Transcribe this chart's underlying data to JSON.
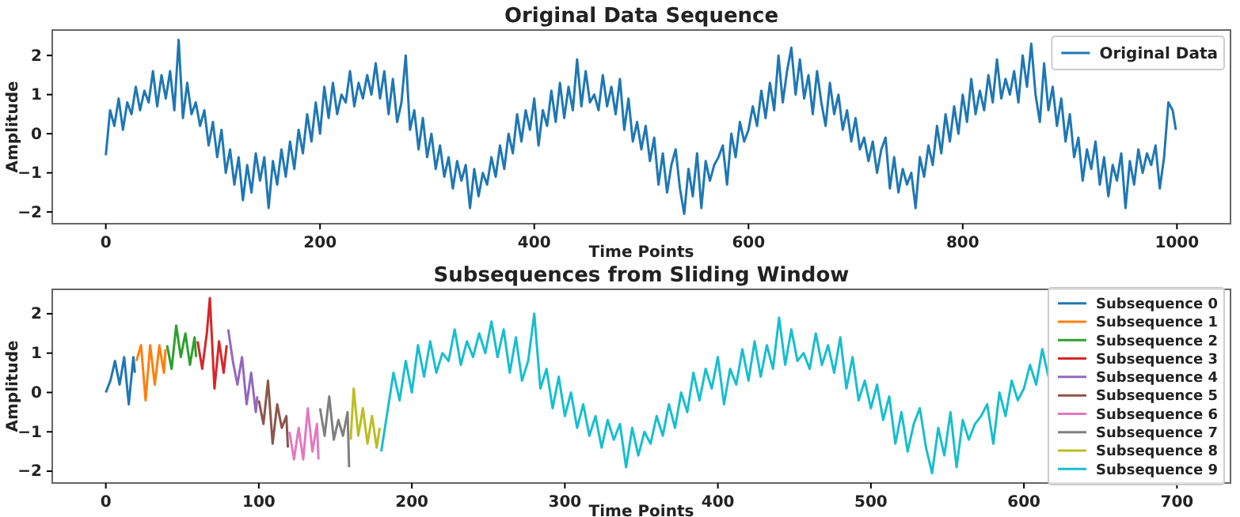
{
  "chart_data": [
    {
      "type": "line",
      "title": "Original Data Sequence",
      "xlabel": "Time Points",
      "ylabel": "Amplitude",
      "xlim": [
        -50,
        1050
      ],
      "ylim": [
        -2.3,
        2.65
      ],
      "xticks": [
        0,
        200,
        400,
        600,
        800,
        1000
      ],
      "yticks": [
        -2,
        -1,
        0,
        1,
        2
      ],
      "legend": "top right",
      "series": [
        {
          "name": "Original Data",
          "color": "#1f77b4",
          "x": [
            0,
            4,
            8,
            12,
            16,
            20,
            24,
            28,
            32,
            36,
            40,
            44,
            48,
            52,
            56,
            60,
            64,
            68,
            72,
            76,
            80,
            84,
            88,
            92,
            96,
            100,
            104,
            108,
            112,
            116,
            120,
            124,
            128,
            132,
            136,
            140,
            144,
            148,
            152,
            156,
            160,
            164,
            168,
            172,
            176,
            180,
            184,
            188,
            192,
            196,
            200,
            204,
            208,
            212,
            216,
            220,
            224,
            228,
            232,
            236,
            240,
            244,
            248,
            252,
            256,
            260,
            264,
            268,
            272,
            276,
            280,
            284,
            288,
            292,
            296,
            300,
            304,
            308,
            312,
            316,
            320,
            324,
            328,
            332,
            336,
            340,
            344,
            348,
            352,
            356,
            360,
            364,
            368,
            372,
            376,
            380,
            384,
            388,
            392,
            396,
            400,
            404,
            408,
            412,
            416,
            420,
            424,
            428,
            432,
            436,
            440,
            444,
            448,
            452,
            456,
            460,
            464,
            468,
            472,
            476,
            480,
            484,
            488,
            492,
            496,
            500,
            504,
            508,
            512,
            516,
            520,
            524,
            528,
            532,
            536,
            540,
            544,
            548,
            552,
            556,
            560,
            564,
            568,
            572,
            576,
            580,
            584,
            588,
            592,
            596,
            600,
            604,
            608,
            612,
            616,
            620,
            624,
            628,
            632,
            636,
            640,
            644,
            648,
            652,
            656,
            660,
            664,
            668,
            672,
            676,
            680,
            684,
            688,
            692,
            696,
            700,
            704,
            708,
            712,
            716,
            720,
            724,
            728,
            732,
            736,
            740,
            744,
            748,
            752,
            756,
            760,
            764,
            768,
            772,
            776,
            780,
            784,
            788,
            792,
            796,
            800,
            804,
            808,
            812,
            816,
            820,
            824,
            828,
            832,
            836,
            840,
            844,
            848,
            852,
            856,
            860,
            864,
            868,
            872,
            876,
            880,
            884,
            888,
            892,
            896,
            900,
            904,
            908,
            912,
            916,
            920,
            924,
            928,
            932,
            936,
            940,
            944,
            948,
            952,
            956,
            960,
            964,
            968,
            972,
            976,
            980,
            984,
            988,
            992,
            996,
            999
          ],
          "values": [
            -0.55,
            0.6,
            0.2,
            0.9,
            0.1,
            0.8,
            0.5,
            1.2,
            0.6,
            1.1,
            0.8,
            1.6,
            0.7,
            1.5,
            0.9,
            1.6,
            0.6,
            2.4,
            0.4,
            1.3,
            0.5,
            0.8,
            0.2,
            0.6,
            -0.3,
            0.3,
            -0.6,
            0.1,
            -1.0,
            -0.4,
            -1.3,
            -0.6,
            -1.7,
            -0.8,
            -1.5,
            -0.5,
            -1.2,
            -0.6,
            -1.9,
            -0.7,
            -1.3,
            -0.4,
            -1.1,
            -0.2,
            -0.9,
            0.1,
            -0.5,
            0.5,
            -0.2,
            0.8,
            0.0,
            1.2,
            0.4,
            1.3,
            0.5,
            1.0,
            0.8,
            1.6,
            0.7,
            1.3,
            0.9,
            1.5,
            1.0,
            1.8,
            0.9,
            1.6,
            0.5,
            1.4,
            0.3,
            0.8,
            2.0,
            0.1,
            0.6,
            -0.4,
            0.4,
            -0.6,
            0.0,
            -0.9,
            -0.3,
            -1.1,
            -0.6,
            -1.4,
            -0.7,
            -1.2,
            -0.8,
            -1.9,
            -0.9,
            -1.6,
            -1.0,
            -1.3,
            -0.6,
            -1.1,
            -0.3,
            -0.9,
            0.0,
            -0.5,
            0.5,
            -0.2,
            0.6,
            0.1,
            0.9,
            -0.3,
            0.6,
            0.2,
            1.1,
            0.3,
            1.3,
            0.4,
            1.2,
            0.6,
            1.9,
            0.7,
            1.6,
            0.8,
            1.0,
            0.6,
            1.5,
            0.7,
            1.2,
            0.5,
            1.4,
            0.1,
            0.9,
            -0.2,
            0.3,
            -0.4,
            0.2,
            -0.7,
            -0.1,
            -1.3,
            -0.5,
            -1.5,
            -0.8,
            -0.4,
            -1.4,
            -2.05,
            -0.9,
            -1.6,
            -0.5,
            -1.9,
            -0.7,
            -1.2,
            -0.8,
            -0.6,
            -0.3,
            -1.3,
            0.0,
            -0.6,
            0.3,
            -0.2,
            0.1,
            0.7,
            0.2,
            1.1,
            0.4,
            1.3,
            0.6,
            2.0,
            0.8,
            1.6,
            2.2,
            1.0,
            1.9,
            0.9,
            1.5,
            0.5,
            1.6,
            0.8,
            0.2,
            1.3,
            0.5,
            1.0,
            0.1,
            0.6,
            -0.2,
            0.4,
            -0.4,
            -0.1,
            -0.7,
            -0.2,
            -1.0,
            -0.4,
            -0.1,
            -1.4,
            -0.6,
            -1.5,
            -0.9,
            -1.3,
            -1.0,
            -1.9,
            -0.6,
            -1.1,
            -0.3,
            -0.8,
            0.2,
            -0.5,
            0.5,
            -0.2,
            0.7,
            0.0,
            1.0,
            0.3,
            1.4,
            0.5,
            1.1,
            0.6,
            1.5,
            0.8,
            1.9,
            0.9,
            1.4,
            1.0,
            1.6,
            0.8,
            2.0,
            1.2,
            2.3,
            1.0,
            0.3,
            1.8,
            0.6,
            1.2,
            0.2,
            0.9,
            -0.2,
            0.5,
            -0.6,
            -0.1,
            -1.2,
            -0.4,
            -0.9,
            -0.2,
            -1.3,
            -0.6,
            -1.6,
            -0.8,
            -1.2,
            -0.5,
            -1.9,
            -0.7,
            -1.3,
            -0.4,
            -1.0,
            -0.5,
            -0.8,
            -0.3,
            -1.4,
            -0.6,
            0.8,
            0.6,
            0.1
          ]
        }
      ]
    },
    {
      "type": "line",
      "title": "Subsequences from Sliding Window",
      "xlabel": "Time Points",
      "ylabel": "Amplitude",
      "xlim": [
        -35,
        735
      ],
      "ylim": [
        -2.3,
        2.62
      ],
      "xticks": [
        0,
        100,
        200,
        300,
        400,
        500,
        600,
        700
      ],
      "yticks": [
        -2,
        -1,
        0,
        1,
        2
      ],
      "legend": "right",
      "series": [
        {
          "name": "Subsequence 0",
          "color": "#1f77b4",
          "x": [
            0,
            3,
            6,
            9,
            12,
            15,
            18,
            19
          ],
          "values": [
            0.0,
            0.3,
            0.8,
            0.2,
            0.9,
            -0.3,
            0.9,
            0.5
          ]
        },
        {
          "name": "Subsequence 1",
          "color": "#ff7f0e",
          "x": [
            20,
            23,
            26,
            29,
            32,
            35,
            38,
            39
          ],
          "values": [
            0.8,
            1.2,
            -0.2,
            1.2,
            0.2,
            1.2,
            0.5,
            1.1
          ]
        },
        {
          "name": "Subsequence 2",
          "color": "#2ca02c",
          "x": [
            40,
            43,
            46,
            49,
            52,
            55,
            58,
            59
          ],
          "values": [
            1.2,
            0.6,
            1.7,
            0.9,
            1.5,
            0.7,
            1.4,
            0.9
          ]
        },
        {
          "name": "Subsequence 3",
          "color": "#d62728",
          "x": [
            60,
            63,
            66,
            68,
            71,
            74,
            77,
            79
          ],
          "values": [
            1.3,
            0.6,
            1.5,
            2.4,
            0.1,
            1.3,
            0.5,
            1.2
          ]
        },
        {
          "name": "Subsequence 4",
          "color": "#9467bd",
          "x": [
            80,
            83,
            86,
            89,
            92,
            95,
            98,
            99
          ],
          "values": [
            1.6,
            0.8,
            0.2,
            0.9,
            -0.3,
            0.5,
            -0.5,
            -0.1
          ]
        },
        {
          "name": "Subsequence 5",
          "color": "#8c564b",
          "x": [
            100,
            103,
            106,
            109,
            112,
            115,
            118,
            119
          ],
          "values": [
            -0.2,
            -0.8,
            0.3,
            -1.3,
            -0.3,
            -0.9,
            -0.6,
            -1.4
          ]
        },
        {
          "name": "Subsequence 6",
          "color": "#e377c2",
          "x": [
            120,
            123,
            126,
            129,
            132,
            135,
            138,
            139
          ],
          "values": [
            -1.0,
            -1.7,
            -0.9,
            -1.7,
            -0.4,
            -1.5,
            -0.8,
            -1.7
          ]
        },
        {
          "name": "Subsequence 7",
          "color": "#7f7f7f",
          "x": [
            140,
            143,
            146,
            149,
            152,
            155,
            158,
            159
          ],
          "values": [
            -0.4,
            -1.1,
            -0.1,
            -1.2,
            -0.7,
            -1.1,
            -0.5,
            -1.9
          ]
        },
        {
          "name": "Subsequence 8",
          "color": "#bcbd22",
          "x": [
            160,
            162,
            165,
            168,
            171,
            174,
            177,
            179
          ],
          "values": [
            -1.2,
            0.1,
            -1.1,
            -0.4,
            -1.3,
            -0.6,
            -1.4,
            -0.9
          ]
        },
        {
          "name": "Subsequence 9",
          "color": "#17becf",
          "x": [
            180,
            184,
            188,
            192,
            196,
            200,
            204,
            208,
            212,
            216,
            220,
            224,
            228,
            232,
            236,
            240,
            244,
            248,
            252,
            256,
            260,
            264,
            268,
            272,
            276,
            280,
            284,
            288,
            292,
            296,
            300,
            304,
            308,
            312,
            316,
            320,
            324,
            328,
            332,
            336,
            340,
            344,
            348,
            352,
            356,
            360,
            364,
            368,
            372,
            376,
            380,
            384,
            388,
            392,
            396,
            400,
            404,
            408,
            412,
            416,
            420,
            424,
            428,
            432,
            436,
            440,
            444,
            448,
            452,
            456,
            460,
            464,
            468,
            472,
            476,
            480,
            484,
            488,
            492,
            496,
            500,
            504,
            508,
            512,
            516,
            520,
            524,
            528,
            532,
            536,
            540,
            544,
            548,
            552,
            556,
            560,
            564,
            568,
            572,
            576,
            580,
            584,
            588,
            592,
            596,
            600,
            604,
            608,
            612,
            616
          ],
          "values": [
            -1.5,
            -0.5,
            0.5,
            -0.2,
            0.8,
            0.0,
            1.2,
            0.4,
            1.3,
            0.5,
            1.0,
            0.8,
            1.6,
            0.7,
            1.3,
            0.9,
            1.5,
            1.0,
            1.8,
            0.9,
            1.6,
            0.5,
            1.4,
            0.3,
            0.8,
            2.0,
            0.1,
            0.6,
            -0.4,
            0.4,
            -0.6,
            0.0,
            -0.9,
            -0.3,
            -1.1,
            -0.6,
            -1.4,
            -0.7,
            -1.2,
            -0.8,
            -1.9,
            -0.9,
            -1.6,
            -1.0,
            -1.3,
            -0.6,
            -1.1,
            -0.3,
            -0.9,
            0.0,
            -0.5,
            0.5,
            -0.2,
            0.6,
            0.1,
            0.9,
            -0.3,
            0.6,
            0.2,
            1.1,
            0.3,
            1.3,
            0.4,
            1.2,
            0.6,
            1.9,
            0.7,
            1.6,
            0.8,
            1.0,
            0.6,
            1.5,
            0.7,
            1.2,
            0.5,
            1.4,
            0.1,
            0.9,
            -0.2,
            0.3,
            -0.4,
            0.2,
            -0.7,
            -0.1,
            -1.3,
            -0.5,
            -1.5,
            -0.8,
            -0.4,
            -1.4,
            -2.05,
            -0.9,
            -1.6,
            -0.5,
            -1.9,
            -0.7,
            -1.2,
            -0.8,
            -0.6,
            -0.3,
            -1.3,
            0.0,
            -0.6,
            0.3,
            -0.2,
            0.1,
            0.7,
            0.2,
            1.1,
            0.4
          ]
        }
      ]
    }
  ]
}
